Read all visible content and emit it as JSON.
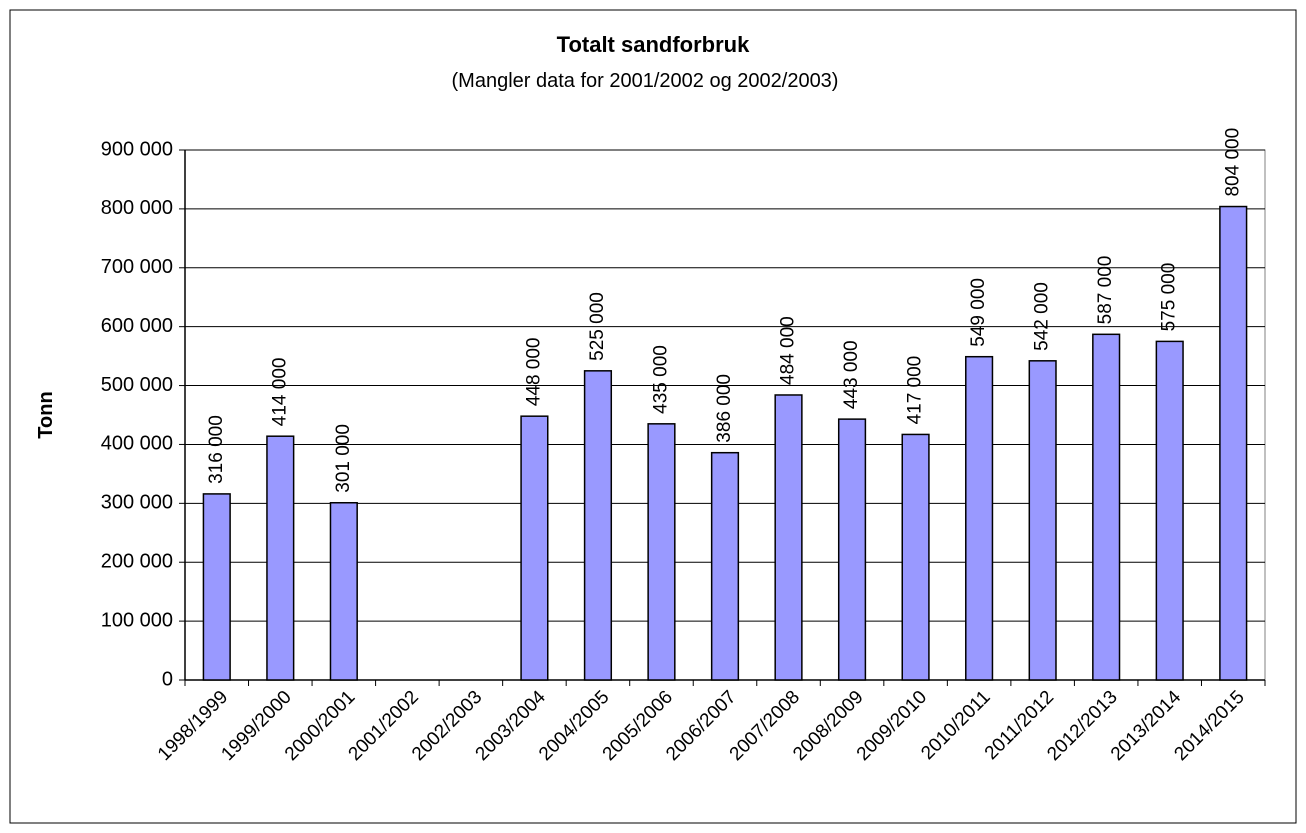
{
  "chart_data": {
    "type": "bar",
    "title": "Totalt sandforbruk",
    "subtitle": "(Mangler data for 2001/2002 og 2002/2003)",
    "y_label": "Tonn",
    "categories": [
      "1998/1999",
      "1999/2000",
      "2000/2001",
      "2001/2002",
      "2002/2003",
      "2003/2004",
      "2004/2005",
      "2005/2006",
      "2006/2007",
      "2007/2008",
      "2008/2009",
      "2009/2010",
      "2010/2011",
      "2011/2012",
      "2012/2013",
      "2013/2014",
      "2014/2015"
    ],
    "values": [
      316000,
      414000,
      301000,
      null,
      null,
      448000,
      525000,
      435000,
      386000,
      484000,
      443000,
      417000,
      549000,
      542000,
      587000,
      575000,
      804000
    ],
    "value_labels": [
      "316 000",
      "414 000",
      "301 000",
      null,
      null,
      "448 000",
      "525 000",
      "435 000",
      "386 000",
      "484 000",
      "443 000",
      "417 000",
      "549 000",
      "542 000",
      "587 000",
      "575 000",
      "804 000"
    ],
    "color": "#9999ff",
    "ylim": [
      0,
      900000
    ],
    "yticks": [
      0,
      {
        "value": 100000,
        "label": "100 000"
      },
      {
        "value": 200000,
        "label": "200 000"
      },
      {
        "value": 300000,
        "label": "300 000"
      },
      {
        "value": 400000,
        "label": "400 000"
      },
      {
        "value": 500000,
        "label": "500 000"
      },
      {
        "value": 600000,
        "label": "600 000"
      },
      {
        "value": 700000,
        "label": "700 000"
      },
      {
        "value": 800000,
        "label": "800 000"
      },
      {
        "value": 900000,
        "label": "900 000"
      }
    ],
    "grid": true
  }
}
